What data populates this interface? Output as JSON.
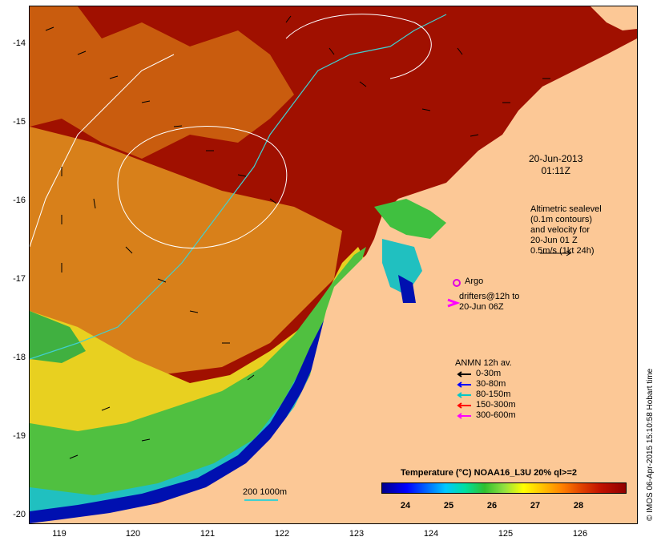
{
  "map": {
    "date": "20-Jun-2013",
    "time": "01:11Z",
    "altimetry_lines": [
      "Altimetric sealevel",
      "(0.1m contours)",
      "and velocity for",
      "20-Jun 01 Z",
      "0.5m/s (1kt 24h)"
    ],
    "argo_label": "Argo",
    "drifter_lines": [
      "drifters@12h to",
      "20-Jun 06Z"
    ],
    "anmn": {
      "title": "ANMN 12h av.",
      "items": [
        {
          "label": "0-30m",
          "color": "#000000"
        },
        {
          "label": "30-80m",
          "color": "#0000ff"
        },
        {
          "label": "80-150m",
          "color": "#00c8c8"
        },
        {
          "label": "150-300m",
          "color": "#ff0000"
        },
        {
          "label": "300-600m",
          "color": "#ff00ff"
        }
      ]
    },
    "colorbar": {
      "title": "Temperature (°C) NOAA16_L3U 20% ql>=2",
      "ticks": [
        "24",
        "25",
        "26",
        "27",
        "28"
      ]
    },
    "depth_label": "200  1000m",
    "credit": "© IMOS 06-Apr-2015 15:10:58 Hobart time",
    "lat_ticks": [
      "-14",
      "-15",
      "-16",
      "-17",
      "-18",
      "-19",
      "-20"
    ],
    "lon_ticks": [
      "119",
      "120",
      "121",
      "122",
      "123",
      "124",
      "125",
      "126"
    ],
    "colors": {
      "land": "#fcc896",
      "warm": "#9e0a00",
      "orange": "#d8750f",
      "yellow": "#e8d820",
      "green": "#40c040",
      "cyan": "#30c8c8",
      "blue": "#0000c8",
      "argo": "#e000e0"
    }
  }
}
